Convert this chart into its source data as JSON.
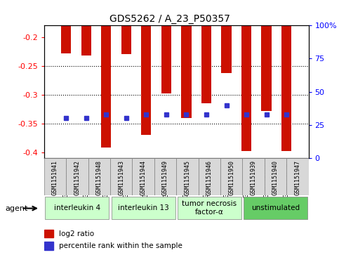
{
  "title": "GDS5262 / A_23_P50357",
  "samples": [
    "GSM1151941",
    "GSM1151942",
    "GSM1151948",
    "GSM1151943",
    "GSM1151944",
    "GSM1151949",
    "GSM1151945",
    "GSM1151946",
    "GSM1151950",
    "GSM1151939",
    "GSM1151940",
    "GSM1151947"
  ],
  "log2_ratio": [
    -0.228,
    -0.232,
    -0.392,
    -0.23,
    -0.37,
    -0.298,
    -0.34,
    -0.315,
    -0.262,
    -0.398,
    -0.328,
    -0.398
  ],
  "percentile_rank_values": [
    30,
    30,
    33,
    30,
    33,
    33,
    33,
    33,
    40,
    33,
    33,
    33
  ],
  "agents": [
    {
      "label": "interleukin 4",
      "start": 0,
      "end": 3,
      "color": "#ccffcc"
    },
    {
      "label": "interleukin 13",
      "start": 3,
      "end": 6,
      "color": "#ccffcc"
    },
    {
      "label": "tumor necrosis\nfactor-α",
      "start": 6,
      "end": 9,
      "color": "#ccffcc"
    },
    {
      "label": "unstimulated",
      "start": 9,
      "end": 12,
      "color": "#66cc66"
    }
  ],
  "ylim_left": [
    -0.41,
    -0.18
  ],
  "ylim_right": [
    0,
    100
  ],
  "yticks_left": [
    -0.4,
    -0.35,
    -0.3,
    -0.25,
    -0.2
  ],
  "yticks_left_labels": [
    "-0.4",
    "-0.35",
    "-0.3",
    "-0.25",
    "-0.2"
  ],
  "yticks_right": [
    0,
    25,
    50,
    75,
    100
  ],
  "yticks_right_labels": [
    "0",
    "25",
    "50",
    "75",
    "100%"
  ],
  "bar_color": "#cc1100",
  "dot_color": "#3333cc",
  "legend_log2": "log2 ratio",
  "legend_pct": "percentile rank within the sample",
  "agent_label": "agent",
  "bar_width": 0.5
}
